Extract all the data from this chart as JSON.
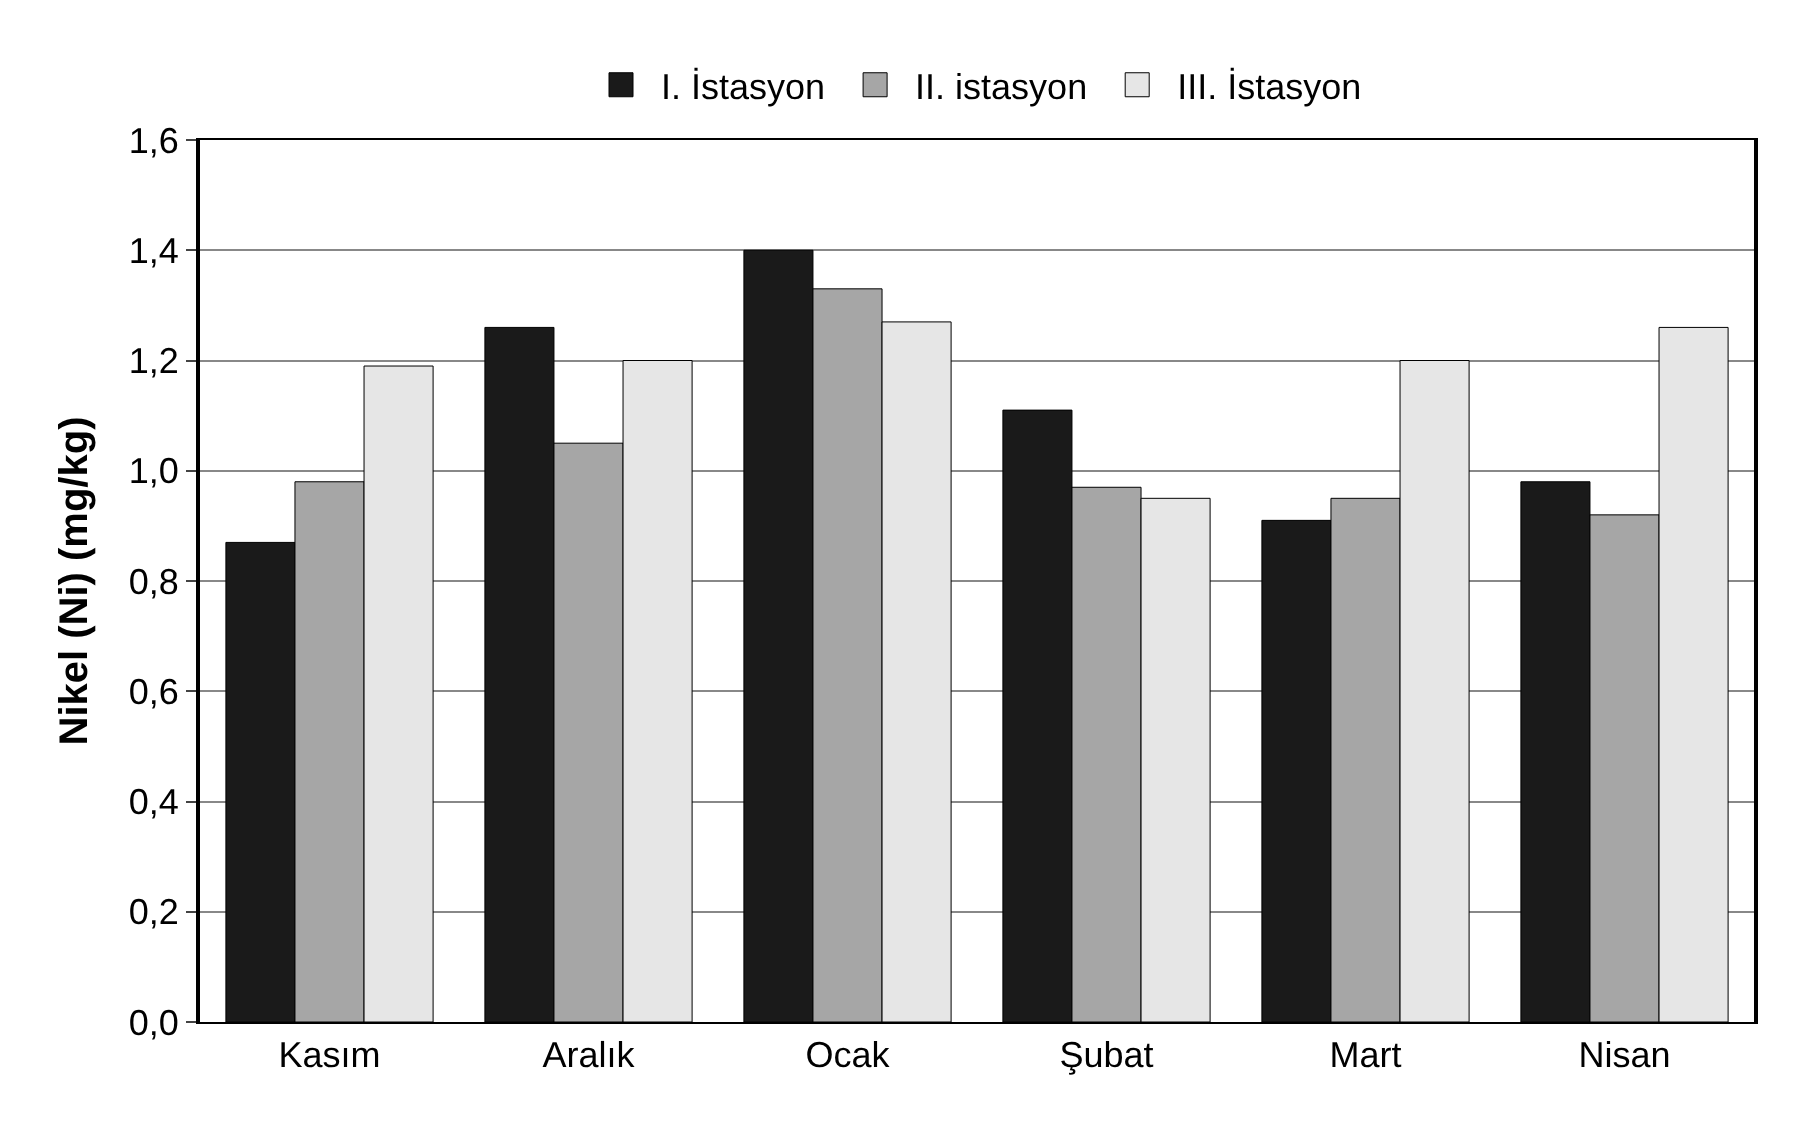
{
  "chart_data": {
    "type": "bar",
    "ylabel": "Nikel (Ni) (mg/kg)",
    "categories": [
      "Kasım",
      "Aralık",
      "Ocak",
      "Şubat",
      "Mart",
      "Nisan"
    ],
    "series": [
      {
        "name": "I. İstasyon",
        "color": "#1a1a1a",
        "values": [
          0.87,
          1.26,
          1.4,
          1.11,
          0.91,
          0.98
        ]
      },
      {
        "name": "II. istasyon",
        "color": "#a6a6a6",
        "values": [
          0.98,
          1.05,
          1.33,
          0.97,
          0.95,
          0.92
        ]
      },
      {
        "name": "III. İstasyon",
        "color": "#e6e6e6",
        "values": [
          1.19,
          1.2,
          1.27,
          0.95,
          1.2,
          1.26
        ]
      }
    ],
    "ylim": [
      0,
      1.6
    ],
    "yticks": [
      {
        "value": 0,
        "label": "0,0"
      },
      {
        "value": 0.2,
        "label": "0,2"
      },
      {
        "value": 0.4,
        "label": "0,4"
      },
      {
        "value": 0.6,
        "label": "0,6"
      },
      {
        "value": 0.8,
        "label": "0,8"
      },
      {
        "value": 1.0,
        "label": "1,0"
      },
      {
        "value": 1.2,
        "label": "1,2"
      },
      {
        "value": 1.4,
        "label": "1,4"
      },
      {
        "value": 1.6,
        "label": "1,6"
      }
    ],
    "grid": "y",
    "legend": "top"
  }
}
